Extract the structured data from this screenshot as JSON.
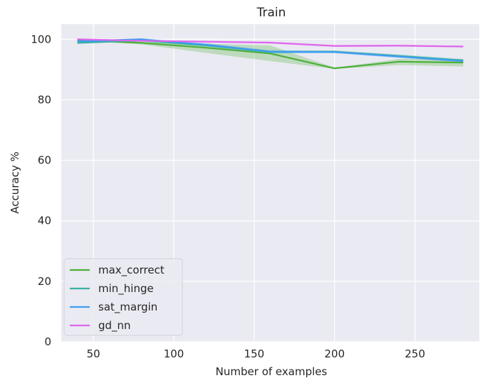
{
  "chart_data": {
    "type": "line",
    "title": "Train",
    "xlabel": "Number of examples",
    "ylabel": "Accuracy %",
    "xlim": [
      30,
      290
    ],
    "ylim": [
      0,
      105
    ],
    "xticks": [
      50,
      100,
      150,
      200,
      250
    ],
    "yticks": [
      0,
      20,
      40,
      60,
      80,
      100
    ],
    "grid": true,
    "background": "#eaeaf2",
    "legend_position": "lower-left",
    "x": [
      40,
      80,
      120,
      160,
      200,
      240,
      280
    ],
    "series": [
      {
        "name": "max_correct",
        "color": "#4daf3a",
        "values": [
          99.8,
          98.8,
          97.2,
          95.3,
          90.4,
          92.6,
          92.3
        ],
        "band_low": [
          99.5,
          98.3,
          95.5,
          92.8,
          90.2,
          91.5,
          91.0
        ],
        "band_high": [
          100,
          99.3,
          98.5,
          98.0,
          90.6,
          93.5,
          93.5
        ]
      },
      {
        "name": "min_hinge",
        "color": "#3bb0a0",
        "values": [
          98.8,
          99.6,
          98.0,
          95.8,
          95.9,
          94.5,
          93.0
        ],
        "band_low": [
          98.5,
          99.3,
          97.5,
          95.3,
          95.5,
          94.0,
          92.5
        ],
        "band_high": [
          99.1,
          99.9,
          98.5,
          96.3,
          96.3,
          95.0,
          93.5
        ]
      },
      {
        "name": "sat_margin",
        "color": "#3d9df0",
        "values": [
          99.3,
          100.0,
          98.2,
          95.9,
          95.8,
          94.3,
          92.8
        ],
        "band_low": [
          99.0,
          99.7,
          97.7,
          95.4,
          95.4,
          93.8,
          92.3
        ],
        "band_high": [
          99.6,
          100.3,
          98.7,
          96.4,
          96.2,
          94.8,
          93.3
        ]
      },
      {
        "name": "gd_nn",
        "color": "#e066ee",
        "values": [
          100.0,
          99.5,
          99.2,
          98.9,
          97.8,
          97.9,
          97.6
        ],
        "band_low": [
          99.8,
          99.2,
          98.9,
          98.6,
          97.5,
          97.6,
          97.3
        ],
        "band_high": [
          100.2,
          99.8,
          99.5,
          99.2,
          98.1,
          98.2,
          97.9
        ]
      }
    ]
  }
}
